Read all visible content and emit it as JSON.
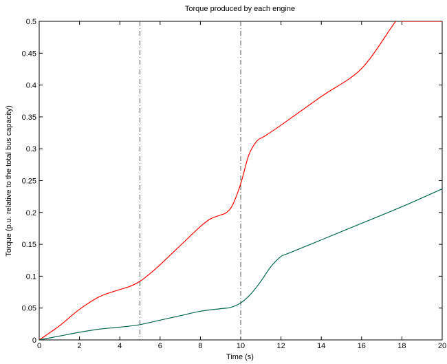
{
  "chart_data": {
    "type": "line",
    "title": "Torque produced by each engine",
    "xlabel": "Time (s)",
    "ylabel": "Torque (p.u. relative to the total bus capacity)",
    "xlim": [
      0,
      20
    ],
    "ylim": [
      0,
      0.5
    ],
    "xticks": [
      0,
      2,
      4,
      6,
      8,
      10,
      12,
      14,
      16,
      18,
      20
    ],
    "xtick_labels": [
      "0",
      "2",
      "4",
      "6",
      "8",
      "10",
      "12",
      "14",
      "16",
      "18",
      "20"
    ],
    "yticks": [
      0,
      0.05,
      0.1,
      0.15,
      0.2,
      0.25,
      0.3,
      0.35,
      0.4,
      0.45,
      0.5
    ],
    "ytick_labels": [
      "0",
      "0.05",
      "0.1",
      "0.15",
      "0.2",
      "0.25",
      "0.3",
      "0.35",
      "0.4",
      "0.45",
      "0.5"
    ],
    "grid": false,
    "vlines": [
      5,
      10
    ],
    "series": [
      {
        "color": "#ff0000",
        "x": [
          0,
          1,
          2,
          3,
          4,
          4.5,
          5,
          5.5,
          6,
          7,
          8,
          8.5,
          9,
          9.3,
          9.6,
          10,
          10.4,
          10.8,
          11.2,
          12,
          14,
          16,
          17.7,
          18,
          19,
          20
        ],
        "y": [
          0,
          0.022,
          0.048,
          0.068,
          0.079,
          0.084,
          0.092,
          0.104,
          0.118,
          0.148,
          0.178,
          0.19,
          0.196,
          0.2,
          0.212,
          0.245,
          0.29,
          0.312,
          0.32,
          0.337,
          0.382,
          0.426,
          0.5,
          0.5,
          0.5,
          0.5
        ]
      },
      {
        "color": "#00664d",
        "x": [
          0,
          1,
          2,
          3,
          4,
          5,
          6,
          7,
          8,
          9,
          9.5,
          10,
          10.5,
          11,
          11.5,
          12,
          12.3,
          14,
          16,
          18,
          20
        ],
        "y": [
          0,
          0.006,
          0.012,
          0.017,
          0.02,
          0.024,
          0.031,
          0.038,
          0.045,
          0.049,
          0.051,
          0.058,
          0.072,
          0.092,
          0.115,
          0.131,
          0.135,
          0.157,
          0.183,
          0.209,
          0.237
        ]
      }
    ]
  }
}
